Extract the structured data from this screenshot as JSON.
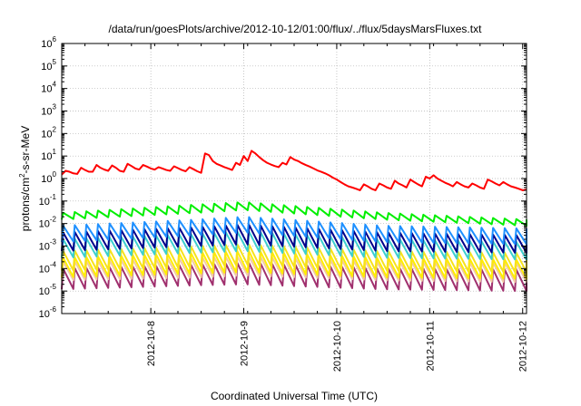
{
  "chart_data": {
    "type": "line",
    "title": "/data/run/goesPlots/archive/2012-10-12/01:00/flux/../flux/5daysMarsFluxes.txt",
    "xlabel": "Coordinated Universal Time (UTC)",
    "ylabel": {
      "prefix": "protons/cm",
      "sup": "2",
      "suffix": "-s-sr-MeV"
    },
    "yscale": "log",
    "ylim": [
      -6,
      6
    ],
    "yticks": [
      {
        "base": "10",
        "exp": "-6"
      },
      {
        "base": "10",
        "exp": "-5"
      },
      {
        "base": "10",
        "exp": "-4"
      },
      {
        "base": "10",
        "exp": "-3"
      },
      {
        "base": "10",
        "exp": "-2"
      },
      {
        "base": "10",
        "exp": "-1"
      },
      {
        "base": "10",
        "exp": "0"
      },
      {
        "base": "10",
        "exp": "1"
      },
      {
        "base": "10",
        "exp": "2"
      },
      {
        "base": "10",
        "exp": "3"
      },
      {
        "base": "10",
        "exp": "4"
      },
      {
        "base": "10",
        "exp": "5"
      },
      {
        "base": "10",
        "exp": "6"
      }
    ],
    "xlim": [
      "2012-10-07 01:00",
      "2012-10-12 01:00"
    ],
    "xticks": [
      "2012-10-8",
      "2012-10-9",
      "2012-10-10",
      "2012-10-11",
      "2012-10-12"
    ],
    "grid": true,
    "series": [
      {
        "color": "#ff0000",
        "points": [
          [
            "2012-10-07 01:00",
            1.5
          ],
          [
            "2012-10-07 02:00",
            2.2
          ],
          [
            "2012-10-07 03:00",
            2.0
          ],
          [
            "2012-10-07 04:00",
            1.7
          ],
          [
            "2012-10-07 05:00",
            1.6
          ],
          [
            "2012-10-07 06:00",
            3.0
          ],
          [
            "2012-10-07 07:00",
            2.4
          ],
          [
            "2012-10-07 08:00",
            2.0
          ],
          [
            "2012-10-07 09:00",
            2.0
          ],
          [
            "2012-10-07 10:00",
            4.0
          ],
          [
            "2012-10-07 11:00",
            3.0
          ],
          [
            "2012-10-07 12:00",
            2.5
          ],
          [
            "2012-10-07 13:00",
            2.2
          ],
          [
            "2012-10-07 14:00",
            3.8
          ],
          [
            "2012-10-07 15:00",
            3.0
          ],
          [
            "2012-10-07 16:00",
            2.2
          ],
          [
            "2012-10-07 17:00",
            2.0
          ],
          [
            "2012-10-07 18:00",
            4.5
          ],
          [
            "2012-10-07 19:00",
            3.6
          ],
          [
            "2012-10-07 20:00",
            2.8
          ],
          [
            "2012-10-07 21:00",
            2.5
          ],
          [
            "2012-10-07 22:00",
            4.0
          ],
          [
            "2012-10-07 23:00",
            3.4
          ],
          [
            "2012-10-08 00:00",
            2.8
          ],
          [
            "2012-10-08 01:00",
            2.5
          ],
          [
            "2012-10-08 02:00",
            3.2
          ],
          [
            "2012-10-08 03:00",
            2.8
          ],
          [
            "2012-10-08 04:00",
            2.4
          ],
          [
            "2012-10-08 05:00",
            2.2
          ],
          [
            "2012-10-08 06:00",
            3.5
          ],
          [
            "2012-10-08 07:00",
            2.9
          ],
          [
            "2012-10-08 08:00",
            2.4
          ],
          [
            "2012-10-08 09:00",
            2.1
          ],
          [
            "2012-10-08 10:00",
            3.2
          ],
          [
            "2012-10-08 11:00",
            2.6
          ],
          [
            "2012-10-08 12:00",
            2.1
          ],
          [
            "2012-10-08 13:00",
            1.8
          ],
          [
            "2012-10-08 14:00",
            13.0
          ],
          [
            "2012-10-08 15:00",
            11.0
          ],
          [
            "2012-10-08 16:00",
            6.0
          ],
          [
            "2012-10-08 17:00",
            4.5
          ],
          [
            "2012-10-08 18:00",
            3.8
          ],
          [
            "2012-10-08 19:00",
            3.2
          ],
          [
            "2012-10-08 20:00",
            2.8
          ],
          [
            "2012-10-08 21:00",
            2.4
          ],
          [
            "2012-10-08 22:00",
            5.0
          ],
          [
            "2012-10-08 23:00",
            4.0
          ],
          [
            "2012-10-09 00:00",
            10.0
          ],
          [
            "2012-10-09 01:00",
            6.0
          ],
          [
            "2012-10-09 02:00",
            17.0
          ],
          [
            "2012-10-09 03:00",
            13.0
          ],
          [
            "2012-10-09 04:00",
            9.0
          ],
          [
            "2012-10-09 05:00",
            6.5
          ],
          [
            "2012-10-09 06:00",
            5.0
          ],
          [
            "2012-10-09 07:00",
            4.2
          ],
          [
            "2012-10-09 08:00",
            3.6
          ],
          [
            "2012-10-09 09:00",
            3.2
          ],
          [
            "2012-10-09 10:00",
            5.0
          ],
          [
            "2012-10-09 11:00",
            4.2
          ],
          [
            "2012-10-09 12:00",
            9.0
          ],
          [
            "2012-10-09 13:00",
            7.0
          ],
          [
            "2012-10-09 14:00",
            6.0
          ],
          [
            "2012-10-09 15:00",
            4.8
          ],
          [
            "2012-10-09 16:00",
            4.0
          ],
          [
            "2012-10-09 17:00",
            3.4
          ],
          [
            "2012-10-09 18:00",
            2.8
          ],
          [
            "2012-10-09 19:00",
            2.3
          ],
          [
            "2012-10-09 20:00",
            2.0
          ],
          [
            "2012-10-09 21:00",
            1.7
          ],
          [
            "2012-10-09 22:00",
            1.4
          ],
          [
            "2012-10-09 23:00",
            1.1
          ],
          [
            "2012-10-10 00:00",
            0.9
          ],
          [
            "2012-10-10 01:00",
            0.7
          ],
          [
            "2012-10-10 02:00",
            0.55
          ],
          [
            "2012-10-10 03:00",
            0.45
          ],
          [
            "2012-10-10 04:00",
            0.4
          ],
          [
            "2012-10-10 05:00",
            0.35
          ],
          [
            "2012-10-10 06:00",
            0.3
          ],
          [
            "2012-10-10 07:00",
            0.55
          ],
          [
            "2012-10-10 08:00",
            0.45
          ],
          [
            "2012-10-10 09:00",
            0.35
          ],
          [
            "2012-10-10 10:00",
            0.3
          ],
          [
            "2012-10-10 11:00",
            0.6
          ],
          [
            "2012-10-10 12:00",
            0.5
          ],
          [
            "2012-10-10 13:00",
            0.4
          ],
          [
            "2012-10-10 14:00",
            0.35
          ],
          [
            "2012-10-10 15:00",
            0.8
          ],
          [
            "2012-10-10 16:00",
            0.6
          ],
          [
            "2012-10-10 17:00",
            0.5
          ],
          [
            "2012-10-10 18:00",
            0.4
          ],
          [
            "2012-10-10 19:00",
            0.9
          ],
          [
            "2012-10-10 20:00",
            0.7
          ],
          [
            "2012-10-10 21:00",
            0.55
          ],
          [
            "2012-10-10 22:00",
            0.45
          ],
          [
            "2012-10-10 23:00",
            1.2
          ],
          [
            "2012-10-11 00:00",
            1.0
          ],
          [
            "2012-10-11 01:00",
            1.4
          ],
          [
            "2012-10-11 02:00",
            1.0
          ],
          [
            "2012-10-11 03:00",
            0.8
          ],
          [
            "2012-10-11 04:00",
            0.65
          ],
          [
            "2012-10-11 05:00",
            0.55
          ],
          [
            "2012-10-11 06:00",
            0.45
          ],
          [
            "2012-10-11 07:00",
            0.7
          ],
          [
            "2012-10-11 08:00",
            0.55
          ],
          [
            "2012-10-11 09:00",
            0.45
          ],
          [
            "2012-10-11 10:00",
            0.4
          ],
          [
            "2012-10-11 11:00",
            0.6
          ],
          [
            "2012-10-11 12:00",
            0.5
          ],
          [
            "2012-10-11 13:00",
            0.4
          ],
          [
            "2012-10-11 14:00",
            0.35
          ],
          [
            "2012-10-11 15:00",
            0.9
          ],
          [
            "2012-10-11 16:00",
            0.75
          ],
          [
            "2012-10-11 17:00",
            0.6
          ],
          [
            "2012-10-11 18:00",
            0.5
          ],
          [
            "2012-10-11 19:00",
            0.7
          ],
          [
            "2012-10-11 20:00",
            0.55
          ],
          [
            "2012-10-11 21:00",
            0.45
          ],
          [
            "2012-10-11 22:00",
            0.4
          ],
          [
            "2012-10-11 23:00",
            0.35
          ],
          [
            "2012-10-12 00:00",
            0.3
          ],
          [
            "2012-10-12 01:00",
            0.32
          ]
        ]
      },
      {
        "color": "#00ee00",
        "sawtooth": {
          "start": "2012-10-07 01:00",
          "end": "2012-10-12 01:00",
          "period_hours": 3,
          "peaks": [
            [
              "2012-10-07 01:00",
              0.03
            ],
            [
              "2012-10-08 12:00",
              0.07
            ],
            [
              "2012-10-09 00:00",
              0.09
            ],
            [
              "2012-10-10 12:00",
              0.03
            ],
            [
              "2012-10-12 01:00",
              0.015
            ]
          ],
          "troughs": [
            [
              "2012-10-07 01:00",
              0.015
            ],
            [
              "2012-10-08 12:00",
              0.03
            ],
            [
              "2012-10-09 00:00",
              0.04
            ],
            [
              "2012-10-10 12:00",
              0.015
            ],
            [
              "2012-10-12 01:00",
              0.008
            ]
          ]
        }
      },
      {
        "color": "#1e90ff",
        "sawtooth": {
          "start": "2012-10-07 01:00",
          "end": "2012-10-12 01:00",
          "period_hours": 3,
          "peaks": [
            [
              "2012-10-07 01:00",
              0.008
            ],
            [
              "2012-10-08 12:00",
              0.015
            ],
            [
              "2012-10-09 00:00",
              0.02
            ],
            [
              "2012-10-10 12:00",
              0.008
            ],
            [
              "2012-10-12 01:00",
              0.006
            ]
          ],
          "troughs": [
            [
              "2012-10-07 01:00",
              0.0015
            ],
            [
              "2012-10-08 12:00",
              0.003
            ],
            [
              "2012-10-09 00:00",
              0.004
            ],
            [
              "2012-10-10 12:00",
              0.0015
            ],
            [
              "2012-10-12 01:00",
              0.0012
            ]
          ]
        }
      },
      {
        "color": "#00008b",
        "sawtooth": {
          "start": "2012-10-07 01:00",
          "end": "2012-10-12 01:00",
          "period_hours": 3,
          "peaks": [
            [
              "2012-10-07 01:00",
              0.004
            ],
            [
              "2012-10-08 12:00",
              0.007
            ],
            [
              "2012-10-09 00:00",
              0.009
            ],
            [
              "2012-10-10 12:00",
              0.004
            ],
            [
              "2012-10-12 01:00",
              0.003
            ]
          ],
          "troughs": [
            [
              "2012-10-07 01:00",
              0.0006
            ],
            [
              "2012-10-08 12:00",
              0.001
            ],
            [
              "2012-10-09 00:00",
              0.0012
            ],
            [
              "2012-10-10 12:00",
              0.0006
            ],
            [
              "2012-10-12 01:00",
              0.0005
            ]
          ]
        }
      },
      {
        "color": "#3ccfcf",
        "sawtooth": {
          "start": "2012-10-07 01:00",
          "end": "2012-10-12 01:00",
          "period_hours": 3,
          "peaks": [
            [
              "2012-10-07 01:00",
              0.002
            ],
            [
              "2012-10-08 12:00",
              0.0035
            ],
            [
              "2012-10-09 00:00",
              0.0045
            ],
            [
              "2012-10-10 12:00",
              0.002
            ],
            [
              "2012-10-12 01:00",
              0.0015
            ]
          ],
          "troughs": [
            [
              "2012-10-07 01:00",
              0.0003
            ],
            [
              "2012-10-08 12:00",
              0.0005
            ],
            [
              "2012-10-09 00:00",
              0.0006
            ],
            [
              "2012-10-10 12:00",
              0.0003
            ],
            [
              "2012-10-12 01:00",
              0.00025
            ]
          ]
        }
      },
      {
        "color": "#f7e21b",
        "sawtooth": {
          "start": "2012-10-07 01:00",
          "end": "2012-10-12 01:00",
          "period_hours": 3,
          "peaks": [
            [
              "2012-10-07 01:00",
              0.0006
            ],
            [
              "2012-10-08 12:00",
              0.001
            ],
            [
              "2012-10-09 00:00",
              0.0012
            ],
            [
              "2012-10-10 12:00",
              0.0006
            ],
            [
              "2012-10-12 01:00",
              0.0005
            ]
          ],
          "troughs": [
            [
              "2012-10-07 01:00",
              8e-05
            ],
            [
              "2012-10-08 12:00",
              0.00012
            ],
            [
              "2012-10-09 00:00",
              0.00015
            ],
            [
              "2012-10-10 12:00",
              8e-05
            ],
            [
              "2012-10-12 01:00",
              7e-05
            ]
          ]
        }
      },
      {
        "color": "#ffee00",
        "sawtooth": {
          "start": "2012-10-07 01:00",
          "end": "2012-10-12 01:00",
          "period_hours": 3,
          "peaks": [
            [
              "2012-10-07 01:00",
              0.0003
            ],
            [
              "2012-10-08 12:00",
              0.0005
            ],
            [
              "2012-10-09 00:00",
              0.0006
            ],
            [
              "2012-10-10 12:00",
              0.0003
            ],
            [
              "2012-10-12 01:00",
              0.00025
            ]
          ],
          "troughs": [
            [
              "2012-10-07 01:00",
              4e-05
            ],
            [
              "2012-10-08 12:00",
              6e-05
            ],
            [
              "2012-10-09 00:00",
              7e-05
            ],
            [
              "2012-10-10 12:00",
              4e-05
            ],
            [
              "2012-10-12 01:00",
              3.5e-05
            ]
          ]
        }
      },
      {
        "color": "#f2c9a6",
        "sawtooth": {
          "start": "2012-10-07 01:00",
          "end": "2012-10-12 01:00",
          "period_hours": 3,
          "peaks": [
            [
              "2012-10-07 01:00",
              0.0002
            ],
            [
              "2012-10-08 12:00",
              0.0003
            ],
            [
              "2012-10-09 00:00",
              0.00035
            ],
            [
              "2012-10-10 12:00",
              0.0002
            ],
            [
              "2012-10-12 01:00",
              0.00018
            ]
          ],
          "troughs": [
            [
              "2012-10-07 01:00",
              3e-05
            ],
            [
              "2012-10-08 12:00",
              4e-05
            ],
            [
              "2012-10-09 00:00",
              5e-05
            ],
            [
              "2012-10-10 12:00",
              3e-05
            ],
            [
              "2012-10-12 01:00",
              2.5e-05
            ]
          ]
        }
      },
      {
        "color": "#a0306e",
        "sawtooth": {
          "start": "2012-10-07 01:00",
          "end": "2012-10-12 01:00",
          "period_hours": 3,
          "peaks": [
            [
              "2012-10-07 01:00",
              0.0001
            ],
            [
              "2012-10-08 12:00",
              0.00015
            ],
            [
              "2012-10-09 00:00",
              0.00018
            ],
            [
              "2012-10-10 12:00",
              0.0001
            ],
            [
              "2012-10-12 01:00",
              9e-05
            ]
          ],
          "troughs": [
            [
              "2012-10-07 01:00",
              1.2e-05
            ],
            [
              "2012-10-08 12:00",
              1.8e-05
            ],
            [
              "2012-10-09 00:00",
              2e-05
            ],
            [
              "2012-10-10 12:00",
              1.2e-05
            ],
            [
              "2012-10-12 01:00",
              1e-05
            ]
          ]
        }
      }
    ]
  }
}
